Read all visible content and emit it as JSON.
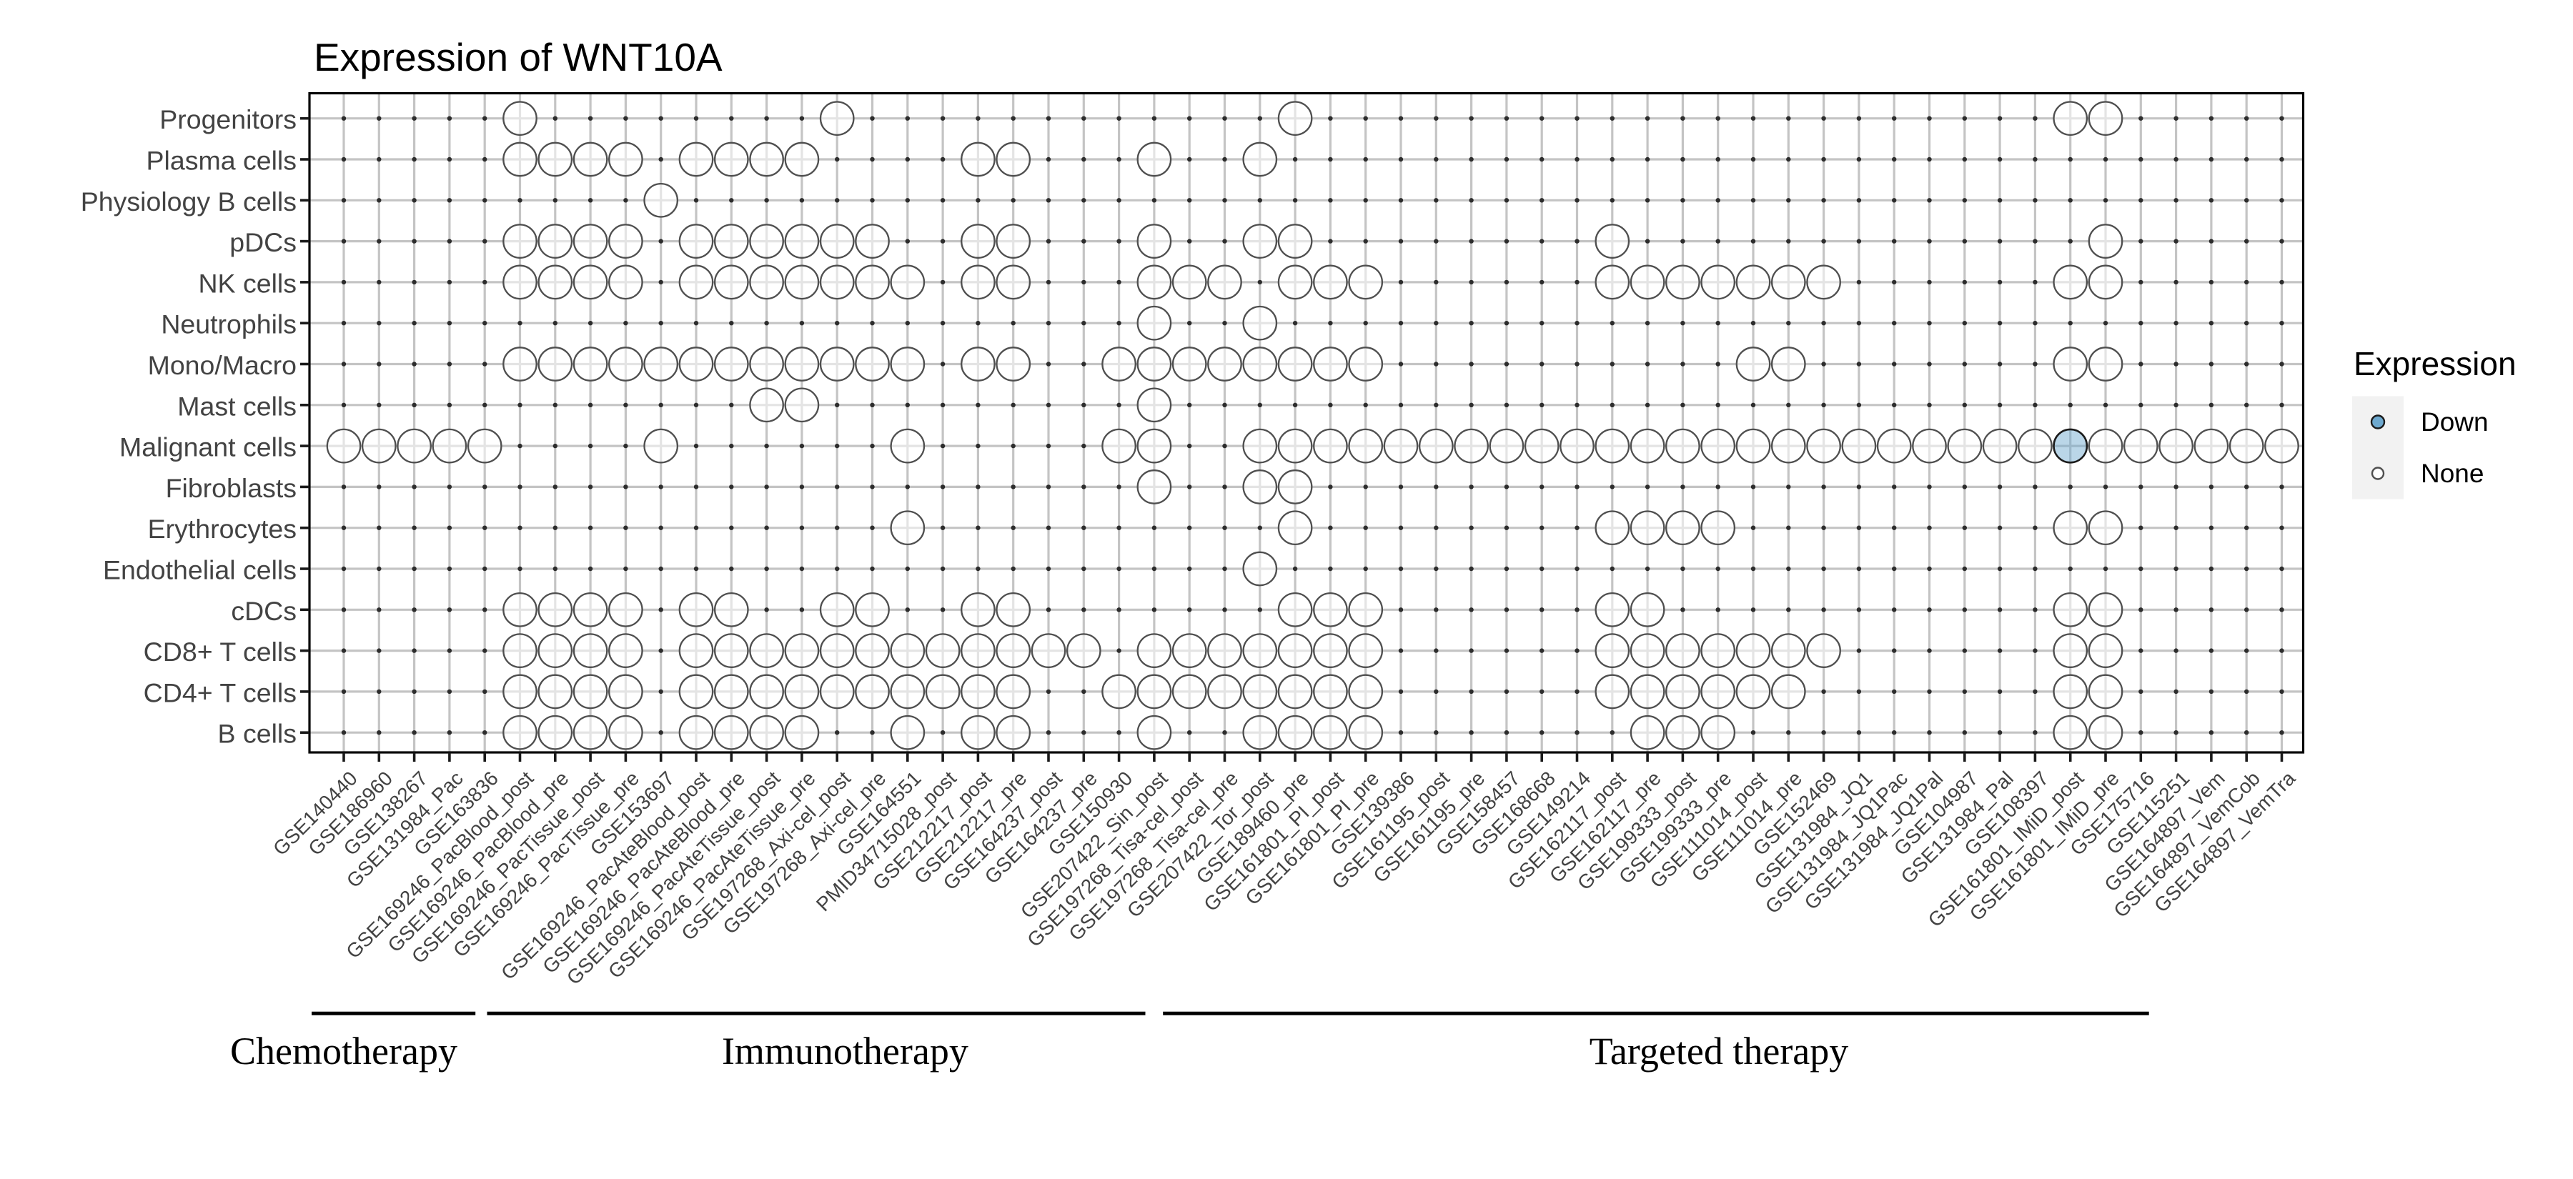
{
  "title": "Expression of WNT10A",
  "legend": {
    "title": "Expression",
    "items": [
      {
        "id": "down",
        "label": "Down",
        "fill": "#6ea9cf",
        "stroke": "#1b1b1b"
      },
      {
        "id": "none",
        "label": "None",
        "fill": "#ffffff",
        "stroke": "#4f4f4f"
      }
    ]
  },
  "groups": [
    {
      "label": "Chemotherapy"
    },
    {
      "label": "Immunotherapy"
    },
    {
      "label": "Targeted therapy"
    }
  ],
  "colors": {
    "grid": "#c4c4c4",
    "dot": "#2d2d2d",
    "circle_none_stroke": "#4f4f4f",
    "circle_none_fill": "rgba(255,255,255,0.55)",
    "circle_down_stroke": "#1b1b1b",
    "circle_down_fill": "rgba(110,169,207,0.48)",
    "panel_border": "#000000",
    "axis_text": "#434343",
    "tick": "#1a1a1a",
    "title_text": "#000000",
    "legend_key_bg": "#f2f2f2"
  },
  "chart_data": {
    "type": "scatter",
    "title": "Expression of WNT10A",
    "xlabel": "",
    "ylabel": "",
    "grid": true,
    "legend_position": "right",
    "legend": {
      "title": "Expression",
      "entries": [
        "Down",
        "None"
      ]
    },
    "x_categories": [
      "GSE140440",
      "GSE186960",
      "GSE138267",
      "GSE131984_Pac",
      "GSE163836",
      "GSE169246_PacBlood_post",
      "GSE169246_PacBlood_pre",
      "GSE169246_PacTissue_post",
      "GSE169246_PacTissue_pre",
      "GSE153697",
      "GSE169246_PacAteBlood_post",
      "GSE169246_PacAteBlood_pre",
      "GSE169246_PacAteTissue_post",
      "GSE169246_PacAteTissue_pre",
      "GSE197268_Axi-cel_post",
      "GSE197268_Axi-cel_pre",
      "GSE164551",
      "PMID34715028_post",
      "GSE212217_post",
      "GSE212217_pre",
      "GSE164237_post",
      "GSE164237_pre",
      "GSE150930",
      "GSE207422_Sin_post",
      "GSE197268_Tisa-cel_post",
      "GSE197268_Tisa-cel_pre",
      "GSE207422_Tor_post",
      "GSE189460_pre",
      "GSE161801_PI_post",
      "GSE161801_PI_pre",
      "GSE139386",
      "GSE161195_post",
      "GSE161195_pre",
      "GSE158457",
      "GSE168668",
      "GSE149214",
      "GSE162117_post",
      "GSE162117_pre",
      "GSE199333_post",
      "GSE199333_pre",
      "GSE111014_post",
      "GSE111014_pre",
      "GSE152469",
      "GSE131984_JQ1",
      "GSE131984_JQ1Pac",
      "GSE131984_JQ1Pal",
      "GSE104987",
      "GSE131984_Pal",
      "GSE108397",
      "GSE161801_IMiD_post",
      "GSE161801_IMiD_pre",
      "GSE175716",
      "GSE115251",
      "GSE164897_Vem",
      "GSE164897_VemCob",
      "GSE164897_VemTra"
    ],
    "y_categories": [
      "Progenitors",
      "Plasma cells",
      "Physiology B cells",
      "pDCs",
      "NK cells",
      "Neutrophils",
      "Mono/Macro",
      "Mast cells",
      "Malignant cells",
      "Fibroblasts",
      "Erythrocytes",
      "Endothelial cells",
      "cDCs",
      "CD8+ T cells",
      "CD4+ T cells",
      "B cells"
    ],
    "x_groups": [
      {
        "label": "Chemotherapy",
        "span": [
          1,
          5
        ]
      },
      {
        "label": "Immunotherapy",
        "span": [
          6,
          24
        ]
      },
      {
        "label": "Targeted therapy",
        "span": [
          24,
          56
        ]
      }
    ],
    "points_none": {
      "Progenitors": [
        6,
        15,
        28,
        50,
        51
      ],
      "Plasma cells": [
        6,
        7,
        8,
        9,
        11,
        12,
        13,
        14,
        19,
        20,
        24,
        27
      ],
      "Physiology B cells": [
        10
      ],
      "pDCs": [
        6,
        7,
        8,
        9,
        11,
        12,
        13,
        14,
        15,
        16,
        19,
        20,
        24,
        27,
        28,
        37,
        51
      ],
      "NK cells": [
        6,
        7,
        8,
        9,
        11,
        12,
        13,
        14,
        15,
        16,
        17,
        19,
        20,
        24,
        25,
        26,
        28,
        29,
        30,
        37,
        38,
        39,
        40,
        41,
        42,
        43,
        50,
        51
      ],
      "Neutrophils": [
        24,
        27
      ],
      "Mono/Macro": [
        6,
        7,
        8,
        9,
        10,
        11,
        12,
        13,
        14,
        15,
        16,
        17,
        19,
        20,
        23,
        24,
        25,
        26,
        27,
        28,
        29,
        30,
        41,
        42,
        50,
        51
      ],
      "Mast cells": [
        13,
        14,
        24
      ],
      "Malignant cells": [
        1,
        2,
        3,
        4,
        5,
        10,
        17,
        23,
        24,
        27,
        28,
        29,
        30,
        31,
        32,
        33,
        34,
        35,
        36,
        37,
        38,
        39,
        40,
        41,
        42,
        43,
        44,
        45,
        46,
        47,
        48,
        49,
        51,
        52,
        53,
        54,
        55,
        56
      ],
      "Fibroblasts": [
        24,
        27,
        28
      ],
      "Erythrocytes": [
        17,
        28,
        37,
        38,
        39,
        40,
        50,
        51
      ],
      "Endothelial cells": [
        27
      ],
      "cDCs": [
        6,
        7,
        8,
        9,
        11,
        12,
        15,
        16,
        19,
        20,
        28,
        29,
        30,
        37,
        38,
        50,
        51
      ],
      "CD8+ T cells": [
        6,
        7,
        8,
        9,
        11,
        12,
        13,
        14,
        15,
        16,
        17,
        18,
        19,
        20,
        21,
        22,
        24,
        25,
        26,
        27,
        28,
        29,
        30,
        37,
        38,
        39,
        40,
        41,
        42,
        43,
        50,
        51
      ],
      "CD4+ T cells": [
        6,
        7,
        8,
        9,
        11,
        12,
        13,
        14,
        15,
        16,
        17,
        18,
        19,
        20,
        23,
        24,
        25,
        26,
        27,
        28,
        29,
        30,
        37,
        38,
        39,
        40,
        41,
        42,
        50,
        51
      ],
      "B cells": [
        6,
        7,
        8,
        9,
        11,
        12,
        13,
        14,
        17,
        19,
        20,
        24,
        27,
        28,
        29,
        30,
        38,
        39,
        40,
        50,
        51
      ]
    },
    "points_down": [
      {
        "y": "Malignant cells",
        "x": "GSE161801_IMiD_post",
        "col": 50
      }
    ]
  }
}
